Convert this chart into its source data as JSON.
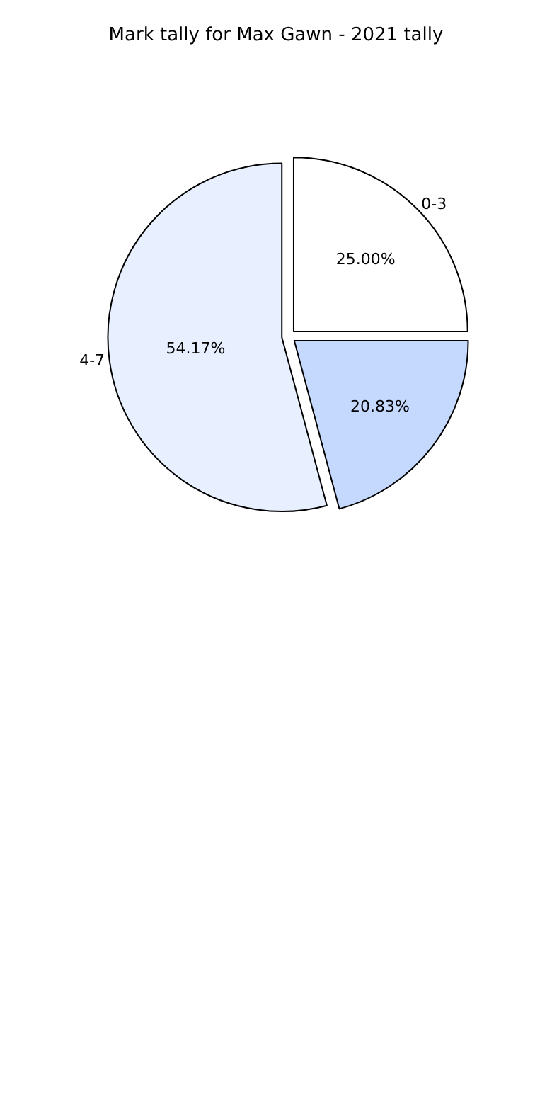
{
  "chart_data": {
    "type": "pie",
    "title": "Mark tally for Max Gawn - 2021 tally",
    "categories": [
      "0-3",
      null,
      "4-7"
    ],
    "values": [
      25.0,
      20.83,
      54.17
    ],
    "colors": [
      "#ffffff",
      "#c5d9ff",
      "#e8f0ff"
    ],
    "value_labels": [
      "25.00%",
      "20.83%",
      "54.17%"
    ],
    "legend": false
  }
}
